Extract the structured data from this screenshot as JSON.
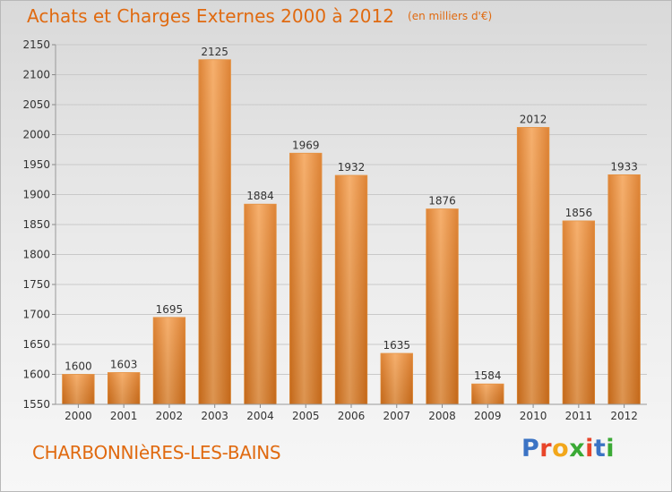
{
  "header": {
    "title": "Achats et Charges Externes 2000 à 2012",
    "subtitle": "(en milliers d'€)"
  },
  "footer": {
    "town": "CHARBONNIèRES-LES-BAINS"
  },
  "logo": {
    "text": "Proxiti",
    "letter_colors": [
      "#3b73c4",
      "#e8452a",
      "#f2a71b",
      "#3aa935",
      "#e8452a",
      "#3b73c4",
      "#3aa935"
    ]
  },
  "colors": {
    "bar_top": "#f5a55a",
    "bar_bottom": "#d9731b",
    "bar_edge": "#e38a34",
    "grid": "#c9c9c9",
    "axis_text": "#333333",
    "title": "#e06a10"
  },
  "chart_data": {
    "type": "bar",
    "categories": [
      "2000",
      "2001",
      "2002",
      "2003",
      "2004",
      "2005",
      "2006",
      "2007",
      "2008",
      "2009",
      "2010",
      "2011",
      "2012"
    ],
    "values": [
      1600,
      1603,
      1695,
      2125,
      1884,
      1969,
      1932,
      1635,
      1876,
      1584,
      2012,
      1856,
      1933
    ],
    "data_labels": [
      "1600",
      "1603",
      "1695",
      "2125",
      "1884",
      "1969",
      "1932",
      "1635",
      "1876",
      "1584",
      "2012",
      "1856",
      "1933"
    ],
    "title": "Achats et Charges Externes 2000 à 2012",
    "subtitle": "(en milliers d'€)",
    "xlabel": "",
    "ylabel": "",
    "ylim": [
      1550,
      2150
    ],
    "yticks": [
      1550,
      1600,
      1650,
      1700,
      1750,
      1800,
      1850,
      1900,
      1950,
      2000,
      2050,
      2100,
      2150
    ],
    "grid": true,
    "legend": "none"
  }
}
